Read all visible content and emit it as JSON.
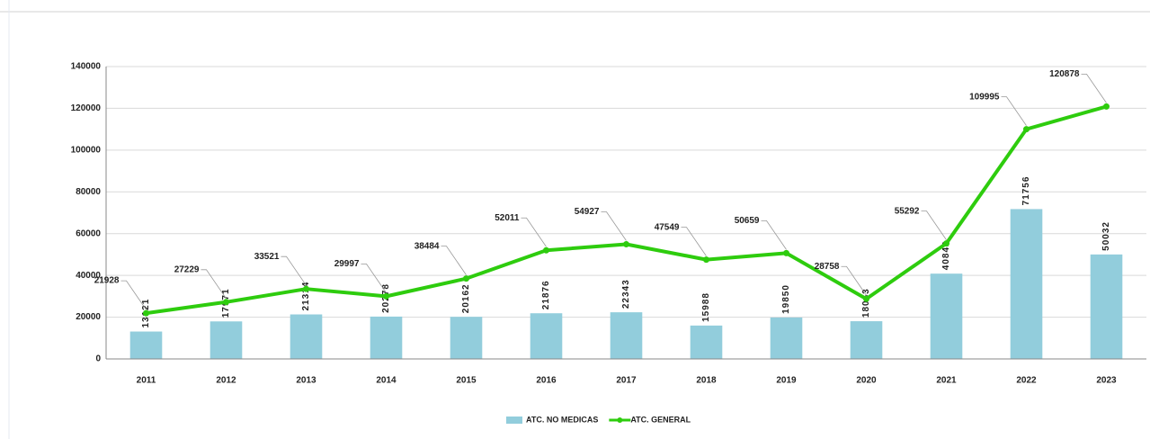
{
  "chart_data": {
    "type": "bar_line",
    "categories": [
      "2011",
      "2012",
      "2013",
      "2014",
      "2015",
      "2016",
      "2017",
      "2018",
      "2019",
      "2020",
      "2021",
      "2022",
      "2023"
    ],
    "series": [
      {
        "name": "ATC. NO MEDICAS",
        "type": "bar",
        "color": "#92cddc",
        "values": [
          13121,
          17971,
          21314,
          20278,
          20162,
          21876,
          22343,
          15988,
          19850,
          18063,
          40842,
          71756,
          50032
        ]
      },
      {
        "name": "ATC. GENERAL",
        "type": "line",
        "color": "#2ecc0e",
        "values": [
          21928,
          27229,
          33521,
          29997,
          38484,
          52011,
          54927,
          47549,
          50659,
          28758,
          55292,
          109995,
          120878
        ]
      }
    ],
    "ylim": [
      0,
      140000
    ],
    "yticks": [
      0,
      20000,
      40000,
      60000,
      80000,
      100000,
      120000,
      140000
    ],
    "grid": true,
    "legend": "bottom"
  }
}
